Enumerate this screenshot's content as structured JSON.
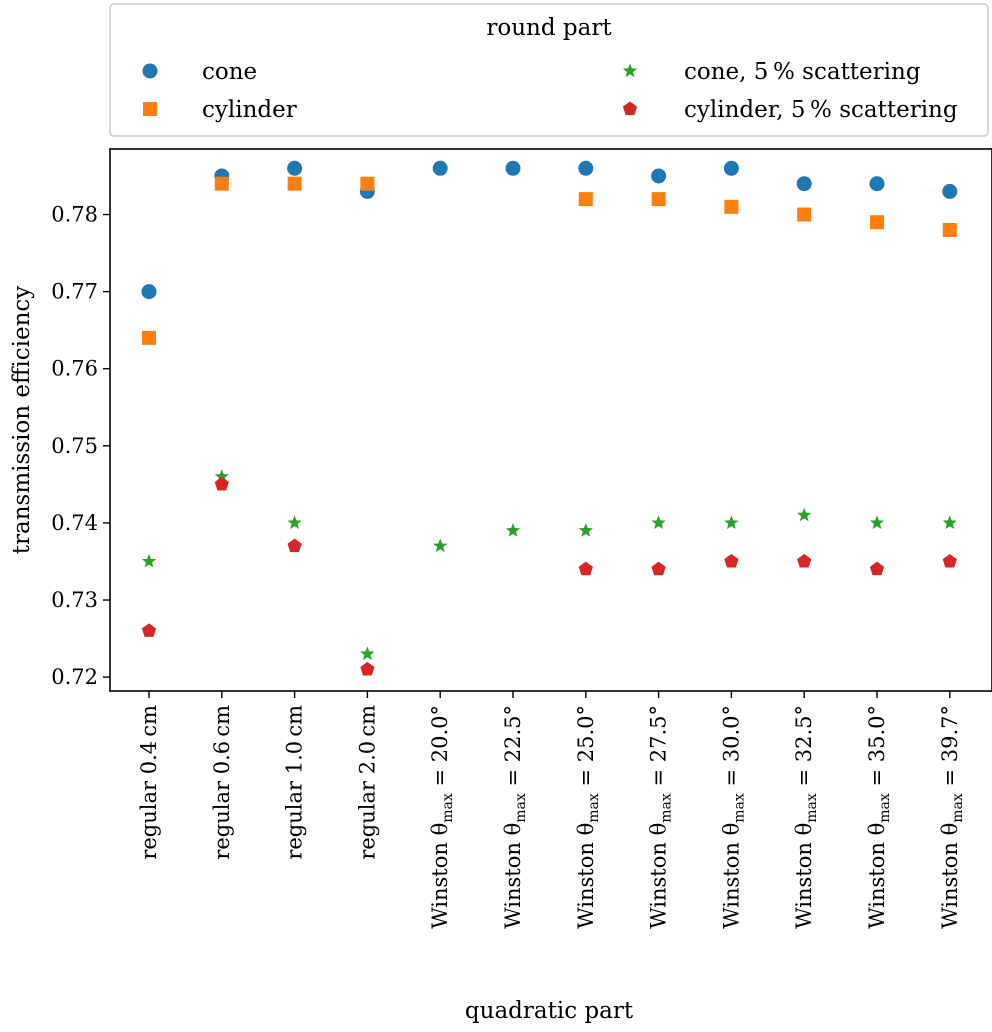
{
  "chart_data": {
    "type": "scatter",
    "xlabel": "quadratic part",
    "ylabel": "transmission efficiency",
    "ylim": [
      0.7182,
      0.7885
    ],
    "yticks": [
      0.72,
      0.73,
      0.74,
      0.75,
      0.76,
      0.77,
      0.78
    ],
    "ytick_labels": [
      "0.72",
      "0.73",
      "0.74",
      "0.75",
      "0.76",
      "0.77",
      "0.78"
    ],
    "grid": false,
    "legend": {
      "title": "round part",
      "placement": "top (above plot), 2 columns"
    },
    "categories": [
      {
        "main": "regular 0.4 cm"
      },
      {
        "main": "regular 0.6 cm"
      },
      {
        "main": "regular 1.0 cm"
      },
      {
        "main": "regular 2.0 cm"
      },
      {
        "main": "Winston θ",
        "sub": "max",
        "tail": " = 20.0°"
      },
      {
        "main": "Winston θ",
        "sub": "max",
        "tail": " = 22.5°"
      },
      {
        "main": "Winston θ",
        "sub": "max",
        "tail": " = 25.0°"
      },
      {
        "main": "Winston θ",
        "sub": "max",
        "tail": " = 27.5°"
      },
      {
        "main": "Winston θ",
        "sub": "max",
        "tail": " = 30.0°"
      },
      {
        "main": "Winston θ",
        "sub": "max",
        "tail": " = 32.5°"
      },
      {
        "main": "Winston θ",
        "sub": "max",
        "tail": " = 35.0°"
      },
      {
        "main": "Winston θ",
        "sub": "max",
        "tail": " = 39.7°"
      }
    ],
    "series": [
      {
        "name": "cone",
        "marker": "circle",
        "color": "#1f77b4",
        "values": [
          0.77,
          0.785,
          0.786,
          0.783,
          0.786,
          0.786,
          0.786,
          0.785,
          0.786,
          0.784,
          0.784,
          0.783
        ]
      },
      {
        "name": "cylinder",
        "marker": "square",
        "color": "#ff7f0e",
        "values": [
          0.764,
          0.784,
          0.784,
          0.784,
          null,
          null,
          0.782,
          0.782,
          0.781,
          0.78,
          0.779,
          0.778
        ]
      },
      {
        "name": "cone, 5 % scattering",
        "marker": "star",
        "color": "#2ca02c",
        "values": [
          0.735,
          0.746,
          0.74,
          0.723,
          0.737,
          0.739,
          0.739,
          0.74,
          0.74,
          0.741,
          0.74,
          0.74
        ]
      },
      {
        "name": "cylinder, 5 % scattering",
        "marker": "pentagon",
        "color": "#d62728",
        "values": [
          0.726,
          0.745,
          0.737,
          0.721,
          null,
          null,
          0.734,
          0.734,
          0.735,
          0.735,
          0.734,
          0.735
        ]
      }
    ]
  }
}
